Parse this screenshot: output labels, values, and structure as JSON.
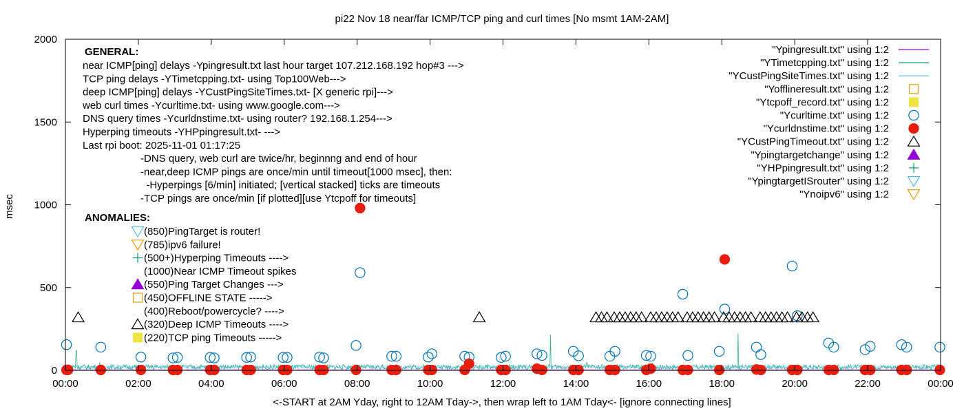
{
  "chart_data": {
    "type": "scatter",
    "title": "pi22 Nov 18  near/far ICMP/TCP ping and curl times [No msmt 1AM-2AM]",
    "xlabel": "<-START at 2AM Yday, right to 12AM Tday->, then wrap left to 1AM Tday<- [ignore connecting lines]",
    "ylabel": "msec",
    "xlim": [
      0,
      24
    ],
    "ylim": [
      0,
      2000
    ],
    "x_unit": "hours",
    "x_ticks": [
      0,
      2,
      4,
      6,
      8,
      10,
      12,
      14,
      16,
      18,
      20,
      22,
      24
    ],
    "x_tick_labels": [
      "00:00",
      "02:00",
      "04:00",
      "06:00",
      "08:00",
      "10:00",
      "12:00",
      "14:00",
      "16:00",
      "18:00",
      "20:00",
      "22:00",
      "00:00"
    ],
    "y_ticks": [
      0,
      500,
      1000,
      1500,
      2000
    ],
    "y_tick_labels": [
      "0",
      "500",
      "1000",
      "1500",
      "2000"
    ],
    "grid": false,
    "legend_position": "top-right",
    "legend": [
      {
        "label": "\"Ypingresult.txt\" using 1:2",
        "marker": "line",
        "color": "#9400d3"
      },
      {
        "label": "\"YTimetcpping.txt\" using 1:2",
        "marker": "line",
        "color": "#009e73"
      },
      {
        "label": "\"YCustPingSiteTimes.txt\" using 1:2",
        "marker": "line",
        "color": "#56b4e9"
      },
      {
        "label": "\"Yofflineresult.txt\" using 1:2",
        "marker": "open-square",
        "color": "#e69f00"
      },
      {
        "label": "\"Ytcpoff_record.txt\" using 1:2",
        "marker": "filled-square",
        "color": "#f0e442"
      },
      {
        "label": "\"Ycurltime.txt\" using 1:2",
        "marker": "open-circle",
        "color": "#0072b2"
      },
      {
        "label": "\"Ycurldnstime.txt\" using 1:2",
        "marker": "filled-circle",
        "color": "#e51e10"
      },
      {
        "label": "\"YCustPingTimeout.txt\" using 1:2",
        "marker": "open-triangle",
        "color": "#000000"
      },
      {
        "label": "\"Ypingtargetchange\" using 1:2",
        "marker": "filled-triangle",
        "color": "#9400d3"
      },
      {
        "label": "\"YHPpingresult.txt\" using 1:2",
        "marker": "plus",
        "color": "#009e73"
      },
      {
        "label": "\"YpingtargetISrouter\" using 1:2",
        "marker": "open-inv-triangle",
        "color": "#56b4e9"
      },
      {
        "label": "\"Ynoipv6\" using 1:2",
        "marker": "open-inv-triangle",
        "color": "#e69f00"
      }
    ],
    "annotations": {
      "general_header": "GENERAL:",
      "general_lines": [
        "near ICMP[ping] delays -Ypingresult.txt last hour target 107.212.168.192 hop#3 --->",
        "TCP ping delays -YTimetcpping.txt- using Top100Web--->",
        "deep ICMP[ping] delays -YCustPingSiteTimes.txt- [X generic rpi]--->",
        "web curl times -Ycurltime.txt- using www.google.com--->",
        "DNS query times -Ycurldnstime.txt- using router? 192.168.1.254--->",
        "Hyperping timeouts -YHPpingresult.txt- --->",
        "Last rpi boot: 2025-11-01 01:17:25"
      ],
      "notes": [
        "-DNS query, web curl are twice/hr, beginnng and end of hour",
        "-near,deep ICMP pings are once/min until timeout[1000 msec], then:",
        "  -Hyperpings [6/min] initiated; [vertical stacked] ticks are timeouts",
        "-TCP pings are once/min [if plotted][use Ytcpoff for timeouts]"
      ],
      "anomalies_header": "ANOMALIES:",
      "anomalies": [
        {
          "text": "(850)PingTarget is router!",
          "marker": "open-inv-triangle",
          "color": "#56b4e9"
        },
        {
          "text": "(785)ipv6 failure!",
          "marker": "open-inv-triangle",
          "color": "#e69f00"
        },
        {
          "text": "(500+)Hyperping Timeouts ---->",
          "marker": "plus",
          "color": "#009e73"
        },
        {
          "text": "(1000)Near ICMP Timeout spikes",
          "marker": "none",
          "color": ""
        },
        {
          "text": "(550)Ping Target Changes --->",
          "marker": "filled-triangle",
          "color": "#9400d3"
        },
        {
          "text": "(450)OFFLINE STATE ----->",
          "marker": "open-square",
          "color": "#e69f00"
        },
        {
          "text": "(400)Reboot/powercycle? ---->",
          "marker": "none",
          "color": ""
        },
        {
          "text": "(320)Deep ICMP Timeouts ---->",
          "marker": "open-triangle",
          "color": "#000000"
        },
        {
          "text": "(220)TCP ping Timeouts ----->",
          "marker": "filled-square",
          "color": "#f0e442"
        }
      ]
    },
    "series": [
      {
        "name": "\"Ycurltime.txt\" using 1:2",
        "marker": "open-circle",
        "color": "#0072b2",
        "x": [
          0.03,
          0.97,
          2.07,
          2.95,
          3.07,
          3.97,
          4.08,
          4.97,
          5.08,
          5.97,
          6.08,
          6.97,
          7.08,
          7.97,
          8.08,
          8.95,
          9.07,
          9.95,
          10.05,
          10.95,
          11.07,
          11.95,
          12.07,
          12.93,
          13.07,
          13.93,
          14.07,
          14.93,
          15.07,
          15.93,
          16.05,
          16.93,
          17.07,
          17.93,
          18.08,
          18.95,
          19.07,
          19.93,
          20.07,
          20.93,
          21.07,
          21.93,
          22.07,
          22.93,
          23.07,
          23.98
        ],
        "y": [
          155,
          140,
          80,
          75,
          78,
          78,
          75,
          78,
          80,
          78,
          78,
          80,
          75,
          150,
          590,
          85,
          85,
          80,
          100,
          85,
          80,
          78,
          85,
          100,
          90,
          115,
          88,
          85,
          115,
          90,
          85,
          460,
          90,
          115,
          370,
          140,
          95,
          630,
          330,
          165,
          140,
          125,
          145,
          155,
          140,
          140
        ]
      },
      {
        "name": "\"Ycurldnstime.txt\" using 1:2",
        "marker": "filled-circle",
        "color": "#e51e10",
        "x": [
          0.03,
          0.07,
          0.97,
          2.07,
          2.95,
          3.07,
          3.97,
          4.08,
          4.97,
          5.08,
          5.97,
          6.08,
          6.97,
          7.08,
          7.97,
          8.08,
          8.95,
          9.07,
          9.95,
          10.05,
          10.95,
          11.07,
          11.95,
          12.07,
          12.93,
          13.07,
          13.93,
          14.07,
          14.93,
          15.07,
          15.93,
          16.05,
          16.93,
          17.07,
          17.93,
          18.08,
          18.95,
          19.07,
          19.93,
          20.07,
          20.93,
          21.07,
          21.93,
          22.07,
          22.93,
          23.07,
          23.98
        ],
        "y": [
          2,
          3,
          2,
          2,
          2,
          2,
          2,
          2,
          2,
          2,
          2,
          2,
          2,
          2,
          2,
          980,
          2,
          2,
          2,
          2,
          2,
          40,
          2,
          2,
          10,
          2,
          2,
          2,
          2,
          2,
          2,
          10,
          2,
          2,
          2,
          670,
          5,
          2,
          2,
          2,
          2,
          2,
          2,
          2,
          2,
          2,
          2
        ]
      },
      {
        "name": "\"YCustPingTimeout.txt\" using 1:2",
        "marker": "open-triangle",
        "color": "#000000",
        "x": [
          0.35,
          11.35,
          14.55,
          14.7,
          14.85,
          15.05,
          15.2,
          15.35,
          15.5,
          15.65,
          15.8,
          16.05,
          16.2,
          16.35,
          16.5,
          16.65,
          16.8,
          17.05,
          17.2,
          17.35,
          17.5,
          17.65,
          17.8,
          18.05,
          18.2,
          18.35,
          18.5,
          18.65,
          18.8,
          19.05,
          19.2,
          19.35,
          19.5,
          19.65,
          19.8,
          20.05,
          20.2,
          20.35,
          20.5
        ],
        "y": [
          320,
          320,
          320,
          320,
          320,
          320,
          320,
          320,
          320,
          320,
          320,
          320,
          320,
          320,
          320,
          320,
          320,
          320,
          320,
          320,
          320,
          320,
          320,
          320,
          320,
          320,
          320,
          320,
          320,
          320,
          320,
          320,
          320,
          320,
          320,
          320,
          320,
          320,
          320
        ]
      },
      {
        "name": "\"YTimetcpping.txt\" using 1:2",
        "marker": "line",
        "color": "#009e73",
        "baseline_range": [
          5,
          35
        ],
        "spikes": [
          {
            "x": 0.3,
            "y": 120
          },
          {
            "x": 0.95,
            "y": 50
          },
          {
            "x": 13.3,
            "y": 215
          },
          {
            "x": 14.3,
            "y": 50
          },
          {
            "x": 18.45,
            "y": 225
          },
          {
            "x": 16.1,
            "y": 45
          }
        ]
      },
      {
        "name": "\"YCustPingSiteTimes.txt\" using 1:2",
        "marker": "line",
        "color": "#56b4e9",
        "baseline_range": [
          10,
          30
        ]
      },
      {
        "name": "\"Ypingresult.txt\" using 1:2",
        "marker": "line",
        "color": "#9400d3",
        "baseline_range": [
          2,
          4
        ]
      }
    ]
  }
}
